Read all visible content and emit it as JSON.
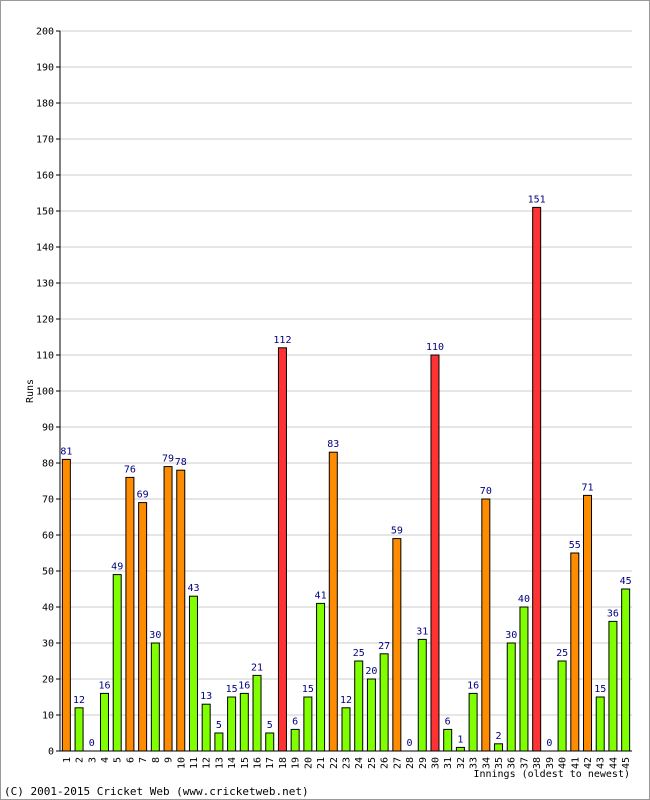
{
  "chart_data": {
    "type": "bar",
    "ylabel": "Runs",
    "xlabel": "Innings (oldest to newest)",
    "ylim": [
      0,
      200
    ],
    "yticks": [
      0,
      10,
      20,
      30,
      40,
      50,
      60,
      70,
      80,
      90,
      100,
      110,
      120,
      130,
      140,
      150,
      160,
      170,
      180,
      190,
      200
    ],
    "grid": true,
    "categories": [
      "1",
      "2",
      "3",
      "4",
      "5",
      "6",
      "7",
      "8",
      "9",
      "10",
      "11",
      "12",
      "13",
      "14",
      "15",
      "16",
      "17",
      "18",
      "19",
      "20",
      "21",
      "22",
      "23",
      "24",
      "25",
      "26",
      "27",
      "28",
      "29",
      "30",
      "31",
      "32",
      "33",
      "34",
      "35",
      "36",
      "37",
      "38",
      "39",
      "40",
      "41",
      "42",
      "43",
      "44",
      "45"
    ],
    "values": [
      81,
      12,
      0,
      16,
      49,
      76,
      69,
      30,
      79,
      78,
      43,
      13,
      5,
      15,
      16,
      21,
      5,
      112,
      6,
      15,
      41,
      83,
      12,
      25,
      20,
      27,
      59,
      0,
      31,
      110,
      6,
      1,
      16,
      70,
      2,
      30,
      40,
      151,
      0,
      25,
      55,
      71,
      15,
      36,
      45
    ],
    "bar_colors": [
      "orange",
      "green",
      "green",
      "green",
      "green",
      "orange",
      "orange",
      "green",
      "orange",
      "orange",
      "green",
      "green",
      "green",
      "green",
      "green",
      "green",
      "green",
      "red",
      "green",
      "green",
      "green",
      "orange",
      "green",
      "green",
      "green",
      "green",
      "orange",
      "green",
      "green",
      "red",
      "green",
      "green",
      "green",
      "orange",
      "green",
      "green",
      "green",
      "red",
      "green",
      "green",
      "orange",
      "orange",
      "green",
      "green",
      "green"
    ]
  },
  "colors": {
    "green": "#80ff00",
    "orange": "#ff8c00",
    "red": "#ff3333",
    "label": "#000080",
    "grid": "#cccccc"
  },
  "footer": "(C) 2001-2015 Cricket Web (www.cricketweb.net)"
}
